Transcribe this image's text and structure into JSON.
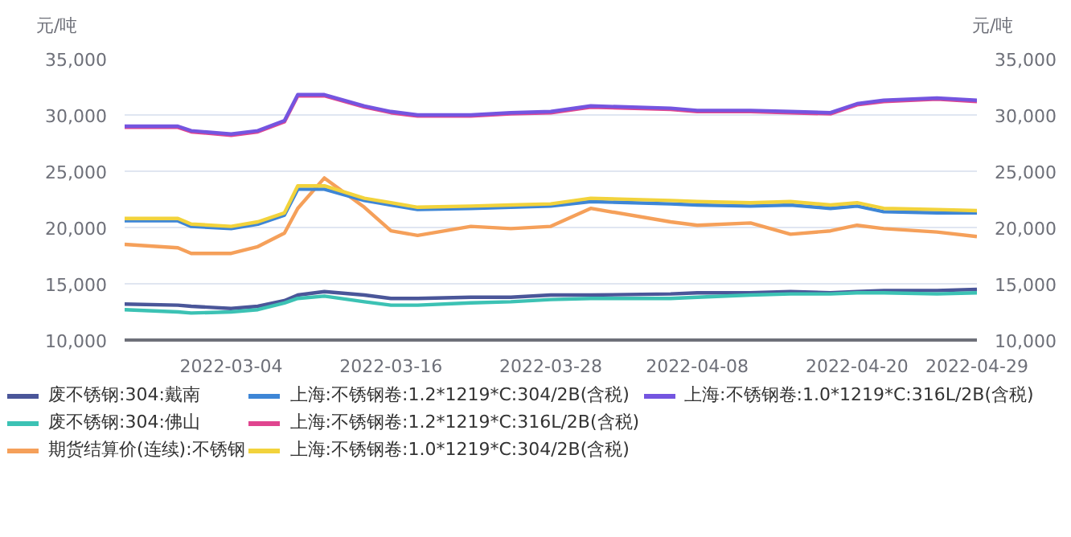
{
  "chart_data": {
    "type": "line",
    "ylabel": "元/吨",
    "y2label": "元/吨",
    "xlim": [
      "2022-02-24",
      "2022-04-29"
    ],
    "xticks": [
      "2022-03-04",
      "2022-03-16",
      "2022-03-28",
      "2022-04-08",
      "2022-04-20",
      "2022-04-29"
    ],
    "ylim": [
      10000,
      35000
    ],
    "yticks": [
      {
        "value": 10000,
        "label": "10,000"
      },
      {
        "value": 15000,
        "label": "15,000"
      },
      {
        "value": 20000,
        "label": "20,000"
      },
      {
        "value": 25000,
        "label": "25,000"
      },
      {
        "value": 30000,
        "label": "30,000"
      },
      {
        "value": 35000,
        "label": "35,000"
      }
    ],
    "y2lim": [
      10000,
      35000
    ],
    "y2ticks": [
      {
        "value": 10000,
        "label": "10,000"
      },
      {
        "value": 15000,
        "label": "15,000"
      },
      {
        "value": 20000,
        "label": "20,000"
      },
      {
        "value": 25000,
        "label": "25,000"
      },
      {
        "value": 30000,
        "label": "30,000"
      },
      {
        "value": 35000,
        "label": "35,000"
      }
    ],
    "grid": "y",
    "legend": "bottom",
    "marker": "none",
    "line_style": "solid",
    "x": [
      "2022-02-24",
      "2022-02-28",
      "2022-03-01",
      "2022-03-04",
      "2022-03-06",
      "2022-03-08",
      "2022-03-09",
      "2022-03-11",
      "2022-03-14",
      "2022-03-16",
      "2022-03-18",
      "2022-03-22",
      "2022-03-25",
      "2022-03-28",
      "2022-03-31",
      "2022-04-06",
      "2022-04-08",
      "2022-04-12",
      "2022-04-15",
      "2022-04-18",
      "2022-04-20",
      "2022-04-22",
      "2022-04-26",
      "2022-04-29"
    ],
    "series": [
      {
        "name": "废不锈钢:304:戴南",
        "color": "#4a5699",
        "values": [
          13200,
          13100,
          13000,
          12800,
          13000,
          13500,
          14000,
          14300,
          14000,
          13700,
          13700,
          13800,
          13800,
          14000,
          14000,
          14100,
          14200,
          14200,
          14300,
          14200,
          14300,
          14400,
          14400,
          14500
        ]
      },
      {
        "name": "废不锈钢:304:佛山",
        "color": "#3cc2b4",
        "values": [
          12700,
          12500,
          12400,
          12500,
          12700,
          13300,
          13700,
          13900,
          13400,
          13100,
          13100,
          13300,
          13400,
          13600,
          13700,
          13700,
          13800,
          14000,
          14100,
          14100,
          14200,
          14200,
          14100,
          14200
        ]
      },
      {
        "name": "期货结算价(连续):不锈钢",
        "color": "#f5a05a",
        "values": [
          18500,
          18200,
          17700,
          17700,
          18300,
          19500,
          21700,
          24400,
          21800,
          19700,
          19300,
          20100,
          19900,
          20100,
          21700,
          20500,
          20200,
          20400,
          19400,
          19700,
          20200,
          19900,
          19600,
          19200
        ]
      },
      {
        "name": "上海:不锈钢卷:1.2*1219*C:304/2B(含税)",
        "color": "#3e86d6",
        "values": [
          20600,
          20600,
          20100,
          19900,
          20300,
          21100,
          23400,
          23400,
          22400,
          22000,
          21600,
          21700,
          21800,
          21900,
          22300,
          22100,
          22000,
          21900,
          22000,
          21700,
          21900,
          21400,
          21300,
          21300
        ]
      },
      {
        "name": "上海:不锈钢卷:1.2*1219*C:316L/2B(含税)",
        "color": "#e0458f",
        "values": [
          28900,
          28900,
          28500,
          28200,
          28500,
          29400,
          31700,
          31700,
          30700,
          30200,
          29900,
          29900,
          30100,
          30200,
          30700,
          30500,
          30300,
          30300,
          30200,
          30100,
          30900,
          31200,
          31400,
          31200
        ]
      },
      {
        "name": "上海:不锈钢卷:1.0*1219*C:304/2B(含税)",
        "color": "#f2d33c",
        "values": [
          20800,
          20800,
          20300,
          20100,
          20500,
          21300,
          23700,
          23700,
          22600,
          22200,
          21800,
          21900,
          22000,
          22100,
          22600,
          22400,
          22300,
          22200,
          22300,
          22000,
          22200,
          21700,
          21600,
          21500
        ]
      },
      {
        "name": "上海:不锈钢卷:1.0*1219*C:316L/2B(含税)",
        "color": "#7455e0",
        "values": [
          29000,
          29000,
          28600,
          28300,
          28600,
          29500,
          31800,
          31800,
          30800,
          30300,
          30000,
          30000,
          30200,
          30300,
          30800,
          30600,
          30400,
          30400,
          30300,
          30200,
          31000,
          31300,
          31500,
          31300
        ]
      }
    ]
  }
}
